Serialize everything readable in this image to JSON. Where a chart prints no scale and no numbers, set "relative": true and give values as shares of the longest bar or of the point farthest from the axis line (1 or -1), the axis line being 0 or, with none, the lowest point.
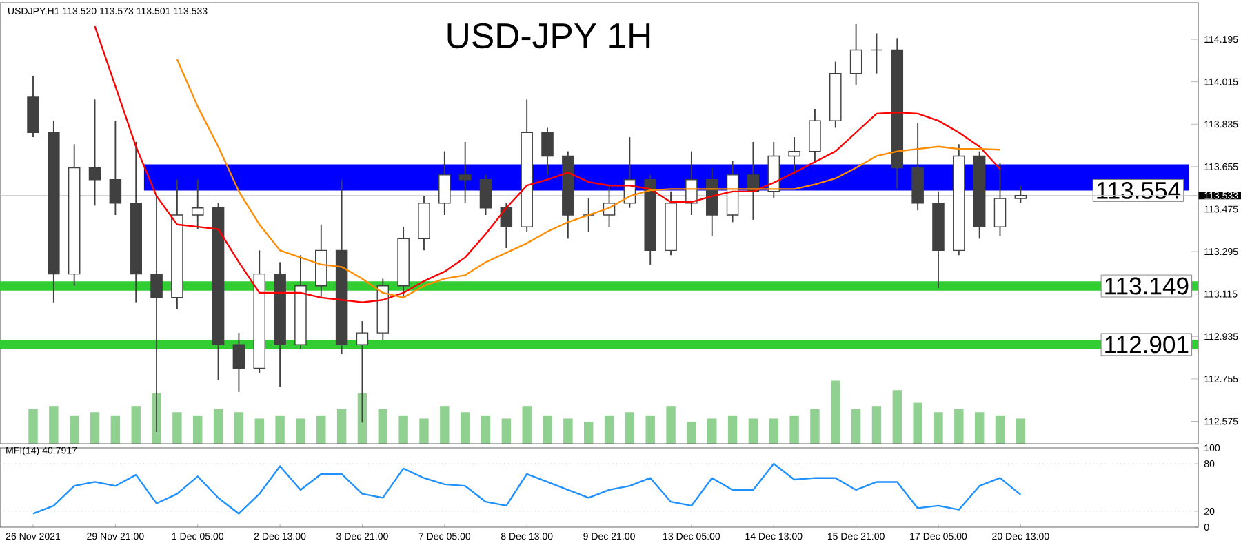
{
  "chart_data": [
    {
      "type": "candlestick",
      "title": "USD-JPY 1H",
      "subtitle": "USDJPY,H1 113.520 113.573 113.501 113.533",
      "color": "#404040",
      "categories": [
        null,
        null,
        null,
        null,
        null,
        null,
        null,
        null,
        null,
        null,
        null,
        null,
        null,
        null,
        null,
        null,
        null,
        null,
        null,
        null,
        null,
        null,
        null,
        null,
        null,
        null,
        null,
        null,
        null,
        null,
        null,
        null,
        null,
        null,
        null,
        null,
        null,
        null,
        null,
        null,
        null,
        null,
        null,
        null,
        null,
        null,
        null,
        null,
        null
      ],
      "ohlc": [
        [
          113.95,
          114.04,
          113.78,
          113.8
        ],
        [
          113.8,
          113.85,
          113.08,
          113.2
        ],
        [
          113.2,
          113.75,
          113.15,
          113.65
        ],
        [
          113.65,
          113.94,
          113.49,
          113.6
        ],
        [
          113.6,
          113.85,
          113.45,
          113.5
        ],
        [
          113.5,
          113.76,
          113.08,
          113.2
        ],
        [
          113.2,
          113.53,
          112.53,
          113.1
        ],
        [
          113.1,
          113.6,
          113.05,
          113.45
        ],
        [
          113.45,
          113.6,
          113.39,
          113.48
        ],
        [
          113.48,
          113.5,
          112.75,
          112.9
        ],
        [
          112.9,
          112.95,
          112.7,
          112.8
        ],
        [
          112.8,
          113.3,
          112.78,
          113.2
        ],
        [
          113.2,
          113.25,
          112.72,
          112.9
        ],
        [
          112.9,
          113.28,
          112.88,
          113.15
        ],
        [
          113.15,
          113.41,
          113.1,
          113.3
        ],
        [
          113.3,
          113.6,
          112.86,
          112.9
        ],
        [
          112.9,
          113.0,
          112.57,
          112.95
        ],
        [
          112.95,
          113.18,
          112.92,
          113.15
        ],
        [
          113.15,
          113.4,
          113.1,
          113.35
        ],
        [
          113.35,
          113.53,
          113.3,
          113.5
        ],
        [
          113.5,
          113.72,
          113.45,
          113.62
        ],
        [
          113.62,
          113.76,
          113.5,
          113.6
        ],
        [
          113.6,
          113.62,
          113.45,
          113.48
        ],
        [
          113.48,
          113.5,
          113.31,
          113.4
        ],
        [
          113.4,
          113.94,
          113.38,
          113.8
        ],
        [
          113.8,
          113.82,
          113.62,
          113.7
        ],
        [
          113.7,
          113.72,
          113.35,
          113.45
        ],
        [
          113.45,
          113.52,
          113.38,
          113.45
        ],
        [
          113.45,
          113.58,
          113.4,
          113.5
        ],
        [
          113.5,
          113.78,
          113.48,
          113.6
        ],
        [
          113.6,
          113.62,
          113.24,
          113.3
        ],
        [
          113.3,
          113.55,
          113.28,
          113.5
        ],
        [
          113.5,
          113.72,
          113.45,
          113.6
        ],
        [
          113.6,
          113.65,
          113.36,
          113.45
        ],
        [
          113.45,
          113.68,
          113.42,
          113.62
        ],
        [
          113.62,
          113.76,
          113.43,
          113.55
        ],
        [
          113.55,
          113.76,
          113.52,
          113.7
        ],
        [
          113.7,
          113.78,
          113.62,
          113.72
        ],
        [
          113.72,
          113.9,
          113.68,
          113.85
        ],
        [
          113.85,
          114.1,
          113.82,
          114.05
        ],
        [
          114.05,
          114.26,
          114.0,
          114.15
        ],
        [
          114.15,
          114.22,
          114.05,
          114.15
        ],
        [
          114.15,
          114.2,
          113.56,
          113.65
        ],
        [
          113.65,
          113.84,
          113.47,
          113.5
        ],
        [
          113.5,
          113.55,
          113.14,
          113.3
        ],
        [
          113.3,
          113.75,
          113.28,
          113.7
        ],
        [
          113.7,
          113.72,
          113.35,
          113.4
        ],
        [
          113.4,
          113.67,
          113.36,
          113.52
        ],
        [
          113.52,
          113.573,
          113.501,
          113.533
        ]
      ],
      "series": [
        {
          "type": "line",
          "color": "#ff0000",
          "values": [
            null,
            null,
            null,
            114.25,
            113.996,
            113.74,
            113.53,
            113.41,
            113.4,
            113.39,
            113.25,
            113.12,
            113.12,
            113.12,
            113.1,
            113.09,
            113.08,
            113.09,
            113.12,
            113.17,
            113.21,
            113.27,
            113.37,
            113.48,
            113.575,
            113.6,
            113.63,
            113.59,
            113.575,
            113.575,
            113.56,
            113.505,
            113.505,
            113.53,
            113.55,
            113.55,
            113.587,
            113.63,
            113.675,
            113.72,
            113.8,
            113.88,
            113.885,
            113.88,
            113.85,
            113.8,
            113.74,
            113.645,
            null
          ]
        },
        {
          "type": "line",
          "color": "#ff8c00",
          "values": [
            null,
            null,
            null,
            null,
            null,
            null,
            null,
            114.11,
            113.91,
            113.74,
            113.55,
            113.41,
            113.3,
            113.27,
            113.24,
            113.23,
            113.18,
            113.12,
            113.1,
            113.15,
            113.18,
            113.195,
            113.25,
            113.29,
            113.33,
            113.38,
            113.42,
            113.45,
            113.48,
            113.53,
            113.555,
            113.56,
            113.56,
            113.56,
            113.56,
            113.56,
            113.56,
            113.56,
            113.58,
            113.605,
            113.65,
            113.7,
            113.72,
            113.73,
            113.74,
            113.73,
            113.73,
            113.727,
            null
          ]
        }
      ],
      "ylim": [
        112.48,
        114.35
      ],
      "yticks": [
        112.575,
        112.755,
        112.935,
        113.115,
        113.295,
        113.475,
        113.655,
        113.835,
        114.015,
        114.195,
        {
          "value": 113.533,
          "label": "113.533"
        }
      ],
      "bands": [
        {
          "axis": "y",
          "from": 113.554,
          "to": 113.665,
          "label": "113.554",
          "color": "#0000ff"
        }
      ],
      "ref_lines": [
        {
          "axis": "y",
          "value": 113.533,
          "color": "#c8c8c8"
        },
        {
          "axis": "y",
          "value": 113.149,
          "label": "113.149",
          "color": "#32cd32"
        },
        {
          "axis": "y",
          "value": 112.901,
          "label": "112.901",
          "color": "#32cd32"
        }
      ],
      "tick_labels": "y"
    },
    {
      "type": "bar",
      "relative": true,
      "color": "#90d090",
      "tick_labels": false,
      "categories": [
        null,
        null,
        null,
        null,
        null,
        null,
        null,
        null,
        null,
        null,
        null,
        null,
        null,
        null,
        null,
        null,
        null,
        null,
        null,
        null,
        null,
        null,
        null,
        null,
        null,
        null,
        null,
        null,
        null,
        null,
        null,
        null,
        null,
        null,
        null,
        null,
        null,
        null,
        null,
        null,
        null,
        null,
        null,
        null,
        null,
        null,
        null,
        null,
        null
      ],
      "values": [
        0.55,
        0.6,
        0.45,
        0.5,
        0.45,
        0.6,
        0.8,
        0.5,
        0.45,
        0.55,
        0.5,
        0.4,
        0.45,
        0.4,
        0.45,
        0.55,
        0.8,
        0.55,
        0.45,
        0.4,
        0.6,
        0.5,
        0.45,
        0.4,
        0.6,
        0.45,
        0.4,
        0.35,
        0.45,
        0.5,
        0.45,
        0.6,
        0.35,
        0.4,
        0.45,
        0.4,
        0.4,
        0.45,
        0.55,
        1.0,
        0.55,
        0.6,
        0.85,
        0.65,
        0.5,
        0.55,
        0.5,
        0.45,
        0.4
      ]
    },
    {
      "type": "line",
      "title": "MFI(14) 40.7917",
      "color": "#1e90ff",
      "categories": [
        "26 Nov 2021",
        null,
        null,
        null,
        "29 Nov 21:00",
        null,
        null,
        null,
        "1 Dec 05:00",
        null,
        null,
        null,
        "2 Dec 13:00",
        null,
        null,
        null,
        "3 Dec 21:00",
        null,
        null,
        null,
        "7 Dec 05:00",
        null,
        null,
        null,
        "8 Dec 13:00",
        null,
        null,
        null,
        "9 Dec 21:00",
        null,
        null,
        null,
        "13 Dec 05:00",
        null,
        null,
        null,
        "14 Dec 13:00",
        null,
        null,
        null,
        "15 Dec 21:00",
        null,
        null,
        null,
        "17 Dec 05:00",
        null,
        null,
        null,
        "20 Dec 13:00"
      ],
      "values": [
        17,
        27,
        52,
        57,
        52,
        66,
        30,
        42,
        64,
        37,
        17,
        42,
        77,
        47,
        67,
        67,
        42,
        37,
        74,
        62,
        54,
        52,
        32,
        27,
        67,
        57,
        47,
        37,
        47,
        52,
        62,
        32,
        27,
        62,
        47,
        47,
        80,
        60,
        62,
        62,
        47,
        57,
        57,
        24,
        27,
        22,
        52,
        62,
        41
      ],
      "ylim": [
        0,
        100
      ],
      "yticks": [
        0,
        20,
        80,
        100
      ],
      "ref_lines": [
        {
          "axis": "y",
          "value": 20,
          "color": "#c0c0c0",
          "line_style": "dotted"
        },
        {
          "axis": "y",
          "value": 80,
          "color": "#c0c0c0",
          "line_style": "dotted"
        }
      ]
    }
  ]
}
